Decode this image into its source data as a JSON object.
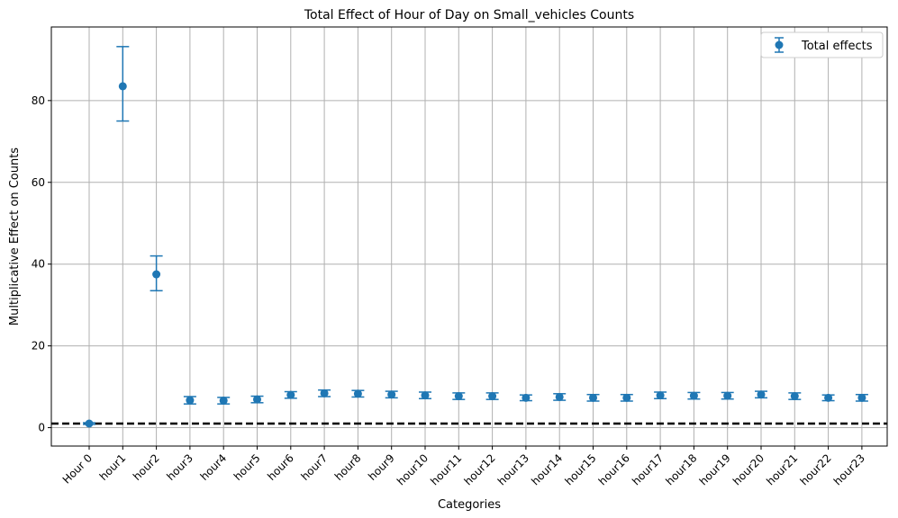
{
  "chart_data": {
    "type": "scatter",
    "title": "Total Effect of Hour of Day on Small_vehicles Counts",
    "xlabel": "Categories",
    "ylabel": "Multiplicative Effect on Counts",
    "categories": [
      "Hour 0",
      "hour1",
      "hour2",
      "hour3",
      "hour4",
      "hour5",
      "hour6",
      "hour7",
      "hour8",
      "hour9",
      "hour10",
      "hour11",
      "hour12",
      "hour13",
      "hour14",
      "hour15",
      "hour16",
      "hour17",
      "hour18",
      "hour19",
      "hour20",
      "hour21",
      "hour22",
      "hour23"
    ],
    "series": [
      {
        "name": "Total effects",
        "values": [
          1.0,
          83.5,
          37.5,
          6.7,
          6.6,
          6.9,
          8.0,
          8.4,
          8.3,
          8.1,
          7.9,
          7.7,
          7.7,
          7.3,
          7.5,
          7.3,
          7.3,
          7.9,
          7.8,
          7.8,
          8.1,
          7.7,
          7.3,
          7.3
        ],
        "lower": [
          0.8,
          75.0,
          33.5,
          5.8,
          5.8,
          6.1,
          7.2,
          7.6,
          7.5,
          7.3,
          7.1,
          6.9,
          6.9,
          6.6,
          6.7,
          6.5,
          6.5,
          7.1,
          7.0,
          7.0,
          7.3,
          6.9,
          6.6,
          6.5
        ],
        "upper": [
          1.2,
          93.2,
          42.0,
          7.6,
          7.4,
          7.7,
          8.8,
          9.2,
          9.1,
          8.9,
          8.7,
          8.5,
          8.5,
          8.0,
          8.3,
          8.1,
          8.1,
          8.7,
          8.6,
          8.6,
          8.9,
          8.5,
          8.0,
          8.1
        ]
      }
    ],
    "reference_line": 1,
    "ylim": [
      -4.5,
      98
    ],
    "yticks": [
      0,
      20,
      40,
      60,
      80
    ],
    "grid": true,
    "legend": "top-right",
    "colors": {
      "series": "#1f77b4",
      "grid": "#b0b0b0",
      "reference": "#000000"
    }
  }
}
